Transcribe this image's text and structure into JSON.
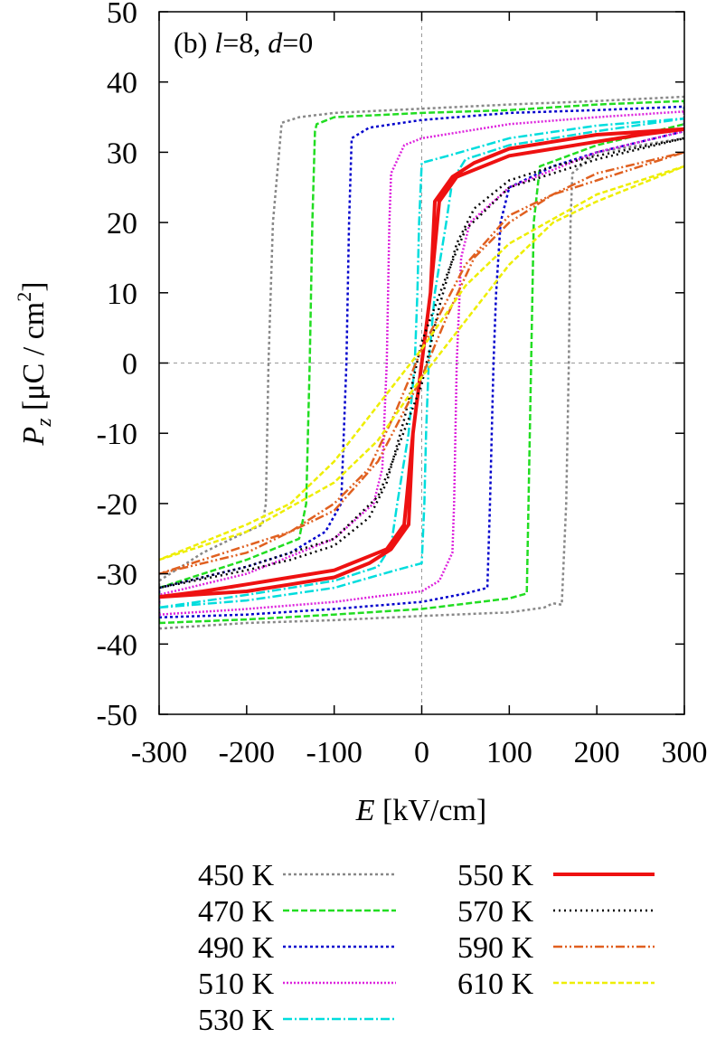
{
  "chart_data": {
    "type": "line",
    "panel_label": {
      "prefix": "(b) ",
      "l_sym": "l",
      "l_val": "=8, ",
      "d_sym": "d",
      "d_val": "=0"
    },
    "xlabel": {
      "sym": "E",
      "unit": " [kV/cm]"
    },
    "ylabel": {
      "sym": "P",
      "sub": "z",
      "unit_pre": " [μC / cm",
      "sup": "2",
      "unit_post": "]"
    },
    "xlim": [
      -300,
      300
    ],
    "ylim": [
      -50,
      50
    ],
    "x_ticks": [
      -300,
      -200,
      -100,
      0,
      100,
      200,
      300
    ],
    "y_ticks": [
      -50,
      -40,
      -30,
      -20,
      -10,
      0,
      10,
      20,
      30,
      40,
      50
    ],
    "zero_lines": true,
    "legend_position": "bottom",
    "series": [
      {
        "name": "450 K",
        "color": "#888888",
        "dash": "3,3",
        "width": 2.5,
        "lower": [
          [
            -300,
            -37.8
          ],
          [
            -200,
            -37.0
          ],
          [
            -100,
            -36.6
          ],
          [
            0,
            -36.0
          ],
          [
            100,
            -35.5
          ],
          [
            140,
            -34.8
          ],
          [
            150,
            -34.2
          ],
          [
            160,
            -34.4
          ],
          [
            165,
            -20
          ],
          [
            168,
            0
          ],
          [
            170,
            20
          ],
          [
            172,
            27
          ],
          [
            200,
            30
          ],
          [
            250,
            31
          ],
          [
            300,
            32
          ]
        ],
        "upper": [
          [
            300,
            37.9
          ],
          [
            200,
            37.3
          ],
          [
            100,
            36.8
          ],
          [
            0,
            36.2
          ],
          [
            -100,
            35.6
          ],
          [
            -140,
            35.0
          ],
          [
            -150,
            34.6
          ],
          [
            -160,
            34.2
          ],
          [
            -170,
            20
          ],
          [
            -175,
            0
          ],
          [
            -178,
            -20
          ],
          [
            -182,
            -23
          ],
          [
            -200,
            -24
          ],
          [
            -250,
            -27
          ],
          [
            -300,
            -31
          ]
        ]
      },
      {
        "name": "470 K",
        "color": "#22dd22",
        "dash": "7,3",
        "width": 2.5,
        "lower": [
          [
            -300,
            -37.0
          ],
          [
            -200,
            -36.5
          ],
          [
            -100,
            -35.8
          ],
          [
            0,
            -35.0
          ],
          [
            100,
            -33.5
          ],
          [
            120,
            -32.8
          ],
          [
            122,
            -20
          ],
          [
            125,
            0
          ],
          [
            128,
            20
          ],
          [
            135,
            28
          ],
          [
            200,
            31
          ],
          [
            300,
            34
          ]
        ],
        "upper": [
          [
            300,
            37.3
          ],
          [
            200,
            36.8
          ],
          [
            100,
            36.0
          ],
          [
            0,
            35.6
          ],
          [
            -100,
            35.0
          ],
          [
            -120,
            34.0
          ],
          [
            -122,
            33.0
          ],
          [
            -125,
            20
          ],
          [
            -128,
            0
          ],
          [
            -132,
            -20
          ],
          [
            -140,
            -25
          ],
          [
            -200,
            -28
          ],
          [
            -300,
            -32
          ]
        ]
      },
      {
        "name": "490 K",
        "color": "#0000cc",
        "dash": "3,3",
        "width": 2.5,
        "lower": [
          [
            -300,
            -36.2
          ],
          [
            -200,
            -35.8
          ],
          [
            -100,
            -35.0
          ],
          [
            0,
            -34.0
          ],
          [
            50,
            -32.8
          ],
          [
            75,
            -32.0
          ],
          [
            78,
            -20
          ],
          [
            82,
            0
          ],
          [
            85,
            10
          ],
          [
            90,
            20
          ],
          [
            100,
            25
          ],
          [
            150,
            28
          ],
          [
            200,
            30
          ],
          [
            300,
            33
          ]
        ],
        "upper": [
          [
            300,
            36.5
          ],
          [
            200,
            36.0
          ],
          [
            100,
            35.6
          ],
          [
            0,
            34.6
          ],
          [
            -60,
            33.5
          ],
          [
            -80,
            32.0
          ],
          [
            -83,
            20
          ],
          [
            -86,
            0
          ],
          [
            -92,
            -20
          ],
          [
            -110,
            -24
          ],
          [
            -150,
            -27
          ],
          [
            -200,
            -29
          ],
          [
            -300,
            -32
          ]
        ]
      },
      {
        "name": "510 K",
        "color": "#dd22dd",
        "dash": "2,2",
        "width": 2.5,
        "lower": [
          [
            -300,
            -35.8
          ],
          [
            -200,
            -35.0
          ],
          [
            -100,
            -34.0
          ],
          [
            -50,
            -33.2
          ],
          [
            0,
            -32.5
          ],
          [
            20,
            -31.0
          ],
          [
            35,
            -27.0
          ],
          [
            37,
            -20
          ],
          [
            40,
            0
          ],
          [
            45,
            15
          ],
          [
            55,
            20
          ],
          [
            100,
            25
          ],
          [
            200,
            30
          ],
          [
            300,
            33
          ]
        ],
        "upper": [
          [
            300,
            35.8
          ],
          [
            200,
            35.0
          ],
          [
            100,
            34.0
          ],
          [
            50,
            33.0
          ],
          [
            0,
            32.0
          ],
          [
            -20,
            31.0
          ],
          [
            -35,
            27.0
          ],
          [
            -37,
            20
          ],
          [
            -40,
            0
          ],
          [
            -45,
            -15
          ],
          [
            -55,
            -20
          ],
          [
            -100,
            -25
          ],
          [
            -200,
            -30
          ],
          [
            -300,
            -33
          ]
        ]
      },
      {
        "name": "530 K",
        "color": "#00dddd",
        "dash": "10,3,2,3",
        "width": 2.5,
        "lower": [
          [
            -300,
            -34.8
          ],
          [
            -200,
            -33.8
          ],
          [
            -100,
            -32.0
          ],
          [
            -30,
            -29.5
          ],
          [
            0,
            -28.5
          ],
          [
            3,
            -20
          ],
          [
            5,
            -10
          ],
          [
            8,
            0
          ],
          [
            15,
            10
          ],
          [
            28,
            20
          ],
          [
            35,
            26
          ],
          [
            50,
            29
          ],
          [
            100,
            31
          ],
          [
            200,
            33
          ],
          [
            300,
            34.8
          ]
        ],
        "upper": [
          [
            300,
            34.8
          ],
          [
            200,
            33.8
          ],
          [
            100,
            32.0
          ],
          [
            30,
            29.5
          ],
          [
            0,
            28.5
          ],
          [
            -3,
            20
          ],
          [
            -5,
            10
          ],
          [
            -8,
            0
          ],
          [
            -15,
            -10
          ],
          [
            -28,
            -20
          ],
          [
            -35,
            -26
          ],
          [
            -50,
            -29
          ],
          [
            -100,
            -31
          ],
          [
            -200,
            -33
          ],
          [
            -300,
            -34.8
          ]
        ]
      },
      {
        "name": "550 K",
        "color": "#ee1111",
        "dash": "",
        "width": 4,
        "lower": [
          [
            -300,
            -33.3
          ],
          [
            -250,
            -32.5
          ],
          [
            -200,
            -31.5
          ],
          [
            -150,
            -30.5
          ],
          [
            -100,
            -29.5
          ],
          [
            -60,
            -27.5
          ],
          [
            -40,
            -26.5
          ],
          [
            -20,
            -23.0
          ],
          [
            -10,
            -10
          ],
          [
            0,
            0
          ],
          [
            10,
            10
          ],
          [
            15,
            23
          ],
          [
            35,
            26.5
          ],
          [
            60,
            28.5
          ],
          [
            100,
            30.5
          ],
          [
            150,
            31.5
          ],
          [
            200,
            32.5
          ],
          [
            300,
            33.3
          ]
        ],
        "upper": [
          [
            300,
            33.3
          ],
          [
            250,
            32.5
          ],
          [
            200,
            31.5
          ],
          [
            150,
            30.5
          ],
          [
            100,
            29.5
          ],
          [
            60,
            27.5
          ],
          [
            40,
            26.5
          ],
          [
            20,
            23.0
          ],
          [
            10,
            10
          ],
          [
            0,
            0
          ],
          [
            -10,
            -10
          ],
          [
            -15,
            -23
          ],
          [
            -35,
            -26.5
          ],
          [
            -60,
            -28.5
          ],
          [
            -100,
            -30.5
          ],
          [
            -150,
            -31.5
          ],
          [
            -200,
            -32.5
          ],
          [
            -300,
            -33.3
          ]
        ]
      },
      {
        "name": "570 K",
        "color": "#000000",
        "dash": "2,4",
        "width": 2.5,
        "lower": [
          [
            -300,
            -32
          ],
          [
            -200,
            -29
          ],
          [
            -100,
            -25
          ],
          [
            -50,
            -19
          ],
          [
            -30,
            -13
          ],
          [
            0,
            -3
          ],
          [
            20,
            8
          ],
          [
            40,
            17
          ],
          [
            60,
            22
          ],
          [
            100,
            26
          ],
          [
            150,
            28
          ],
          [
            200,
            29.5
          ],
          [
            300,
            32
          ]
        ],
        "upper": [
          [
            300,
            32
          ],
          [
            200,
            29
          ],
          [
            100,
            25
          ],
          [
            50,
            19
          ],
          [
            30,
            13
          ],
          [
            0,
            3
          ],
          [
            -20,
            -8
          ],
          [
            -40,
            -17
          ],
          [
            -60,
            -22
          ],
          [
            -100,
            -26
          ],
          [
            -150,
            -28
          ],
          [
            -200,
            -29.5
          ],
          [
            -300,
            -32
          ]
        ]
      },
      {
        "name": "590 K",
        "color": "#e06020",
        "dash": "10,3,2,3,2,3",
        "width": 2.5,
        "lower": [
          [
            -300,
            -30
          ],
          [
            -200,
            -27
          ],
          [
            -100,
            -21
          ],
          [
            -50,
            -14
          ],
          [
            0,
            -2
          ],
          [
            30,
            7
          ],
          [
            60,
            15
          ],
          [
            100,
            20
          ],
          [
            150,
            24
          ],
          [
            200,
            26
          ],
          [
            300,
            30
          ]
        ],
        "upper": [
          [
            300,
            30
          ],
          [
            200,
            27
          ],
          [
            100,
            21
          ],
          [
            50,
            14
          ],
          [
            0,
            2
          ],
          [
            -30,
            -7
          ],
          [
            -60,
            -15
          ],
          [
            -100,
            -20
          ],
          [
            -150,
            -24
          ],
          [
            -200,
            -26
          ],
          [
            -300,
            -30
          ]
        ]
      },
      {
        "name": "610 K",
        "color": "#eeee00",
        "dash": "6,3",
        "width": 2.5,
        "lower": [
          [
            -300,
            -28
          ],
          [
            -200,
            -24
          ],
          [
            -100,
            -17
          ],
          [
            -50,
            -11
          ],
          [
            0,
            -2
          ],
          [
            50,
            6
          ],
          [
            100,
            14
          ],
          [
            150,
            20
          ],
          [
            200,
            23
          ],
          [
            300,
            28
          ]
        ],
        "upper": [
          [
            300,
            28
          ],
          [
            200,
            24
          ],
          [
            100,
            17
          ],
          [
            50,
            11
          ],
          [
            0,
            2
          ],
          [
            -50,
            -6
          ],
          [
            -100,
            -14
          ],
          [
            -150,
            -20
          ],
          [
            -200,
            -23
          ],
          [
            -300,
            -28
          ]
        ]
      }
    ]
  }
}
